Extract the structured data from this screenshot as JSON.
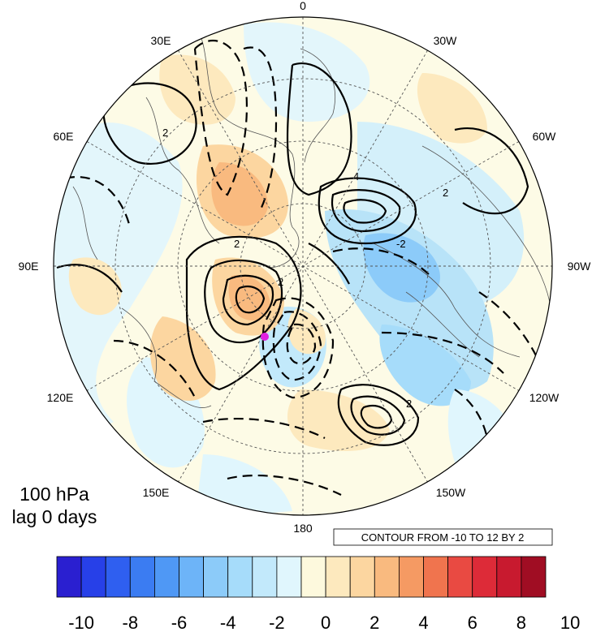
{
  "map": {
    "projection": "north-polar-stereographic",
    "level_label": "100 hPa",
    "lag_label": "lag 0 days",
    "contour_note": "CONTOUR FROM -10 TO 12 BY 2",
    "meridian_labels": [
      "0",
      "30W",
      "60W",
      "90W",
      "120W",
      "150W",
      "180",
      "150E",
      "120E",
      "90E",
      "60E",
      "30E"
    ],
    "marker_color": "#e020e0"
  },
  "colorbar": {
    "ticks": [
      "-10",
      "-8",
      "-6",
      "-4",
      "-2",
      "0",
      "2",
      "4",
      "6",
      "8",
      "10"
    ],
    "colors": [
      "#2a1fd0",
      "#2740e8",
      "#2f5ff0",
      "#3b7cf2",
      "#4f98f5",
      "#6db4f8",
      "#8ccbf9",
      "#a6dcfa",
      "#c2e9fb",
      "#e0f6fd",
      "#fdf9dd",
      "#fde9be",
      "#fcd6a0",
      "#f9ba7f",
      "#f59a63",
      "#f0744e",
      "#e94a42",
      "#dd2b38",
      "#c81a2f",
      "#a00d23"
    ]
  },
  "chart_data": {
    "type": "heatmap",
    "title": "",
    "scale_range": [
      -10,
      10
    ],
    "contour_range": [
      -10,
      12
    ],
    "contour_interval": 2,
    "contour_labels_shown": [
      "2",
      "4",
      "2",
      "-2",
      "2",
      "2",
      "2"
    ]
  }
}
